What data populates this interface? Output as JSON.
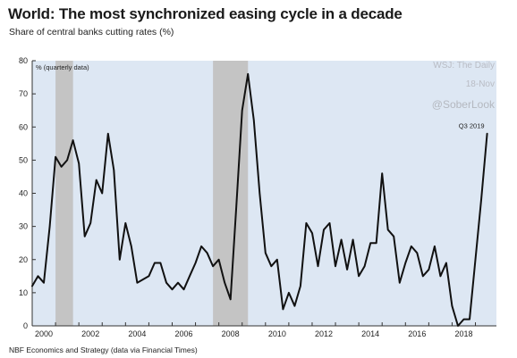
{
  "header": {
    "title": "World: The most synchronized easing cycle in a decade",
    "subtitle": "Share of central banks cutting rates (%)"
  },
  "footer": {
    "source": "NBF Economics and Strategy (data via Financial Times)"
  },
  "watermark": {
    "line1": "WSJ: The Daily",
    "line2": "18-Nov",
    "line3": "@SoberLook"
  },
  "chart_data": {
    "type": "line",
    "title": "World: The most synchronized easing cycle in a decade",
    "subtitle": "Share of central banks cutting rates (%)",
    "unit_note": "% (quarterly data)",
    "annotation": "Q3 2019",
    "xlim": [
      2000,
      2019.9
    ],
    "ylim": [
      0,
      80
    ],
    "y_ticks": [
      0,
      10,
      20,
      30,
      40,
      50,
      60,
      70,
      80
    ],
    "x_ticks": [
      2000,
      2002,
      2004,
      2006,
      2008,
      2010,
      2012,
      2014,
      2016,
      2018
    ],
    "grid": false,
    "recession_shading": [
      [
        2001.0,
        2001.75
      ],
      [
        2007.75,
        2009.25
      ]
    ],
    "colors": {
      "plot_background": "#dde7f3",
      "line": "#111111",
      "shading": "#c4c4c4"
    },
    "series": [
      {
        "x": [
          2000.0,
          2000.25,
          2000.5,
          2000.75,
          2001.0,
          2001.25,
          2001.5,
          2001.75,
          2002.0,
          2002.25,
          2002.5,
          2002.75,
          2003.0,
          2003.25,
          2003.5,
          2003.75,
          2004.0,
          2004.25,
          2004.5,
          2004.75,
          2005.0,
          2005.25,
          2005.5,
          2005.75,
          2006.0,
          2006.25,
          2006.5,
          2006.75,
          2007.0,
          2007.25,
          2007.5,
          2007.75,
          2008.0,
          2008.25,
          2008.5,
          2008.75,
          2009.0,
          2009.25,
          2009.5,
          2009.75,
          2010.0,
          2010.25,
          2010.5,
          2010.75,
          2011.0,
          2011.25,
          2011.5,
          2011.75,
          2012.0,
          2012.25,
          2012.5,
          2012.75,
          2013.0,
          2013.25,
          2013.5,
          2013.75,
          2014.0,
          2014.25,
          2014.5,
          2014.75,
          2015.0,
          2015.25,
          2015.5,
          2015.75,
          2016.0,
          2016.25,
          2016.5,
          2016.75,
          2017.0,
          2017.25,
          2017.5,
          2017.75,
          2018.0,
          2018.25,
          2018.5,
          2018.75,
          2019.0,
          2019.25,
          2019.5
        ],
        "values": [
          12,
          15,
          13,
          30,
          51,
          48,
          50,
          56,
          49,
          27,
          31,
          44,
          40,
          58,
          47,
          20,
          31,
          24,
          13,
          14,
          15,
          19,
          19,
          13,
          11,
          13,
          11,
          15,
          19,
          24,
          22,
          18,
          20,
          13,
          8,
          36,
          65,
          76,
          62,
          40,
          22,
          18,
          20,
          5,
          10,
          6,
          12,
          31,
          28,
          18,
          29,
          31,
          18,
          26,
          17,
          26,
          15,
          18,
          25,
          25,
          46,
          29,
          27,
          13,
          19,
          24,
          22,
          15,
          17,
          24,
          15,
          19,
          6,
          0,
          2,
          2,
          20,
          38,
          58
        ]
      }
    ]
  }
}
